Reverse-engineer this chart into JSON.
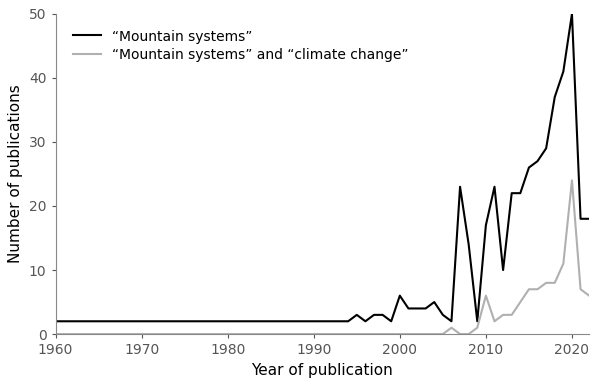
{
  "title": "",
  "xlabel": "Year of publication",
  "ylabel": "Number of publications",
  "xlim": [
    1960,
    2022
  ],
  "ylim": [
    0,
    50
  ],
  "yticks": [
    0,
    10,
    20,
    30,
    40,
    50
  ],
  "xticks": [
    1960,
    1970,
    1980,
    1990,
    2000,
    2010,
    2020
  ],
  "legend1": "“Mountain systems”",
  "legend2": "“Mountain systems” and “climate change”",
  "color1": "#000000",
  "color2": "#b0b0b0",
  "mountain_systems": {
    "years": [
      1960,
      1961,
      1962,
      1963,
      1964,
      1965,
      1966,
      1967,
      1968,
      1969,
      1970,
      1971,
      1972,
      1973,
      1974,
      1975,
      1976,
      1977,
      1978,
      1979,
      1980,
      1981,
      1982,
      1983,
      1984,
      1985,
      1986,
      1987,
      1988,
      1989,
      1990,
      1991,
      1992,
      1993,
      1994,
      1995,
      1996,
      1997,
      1998,
      1999,
      2000,
      2001,
      2002,
      2003,
      2004,
      2005,
      2006,
      2007,
      2008,
      2009,
      2010,
      2011,
      2012,
      2013,
      2014,
      2015,
      2016,
      2017,
      2018,
      2019,
      2020,
      2021,
      2022
    ],
    "values": [
      2,
      2,
      2,
      2,
      2,
      2,
      2,
      2,
      2,
      2,
      2,
      2,
      2,
      2,
      2,
      2,
      2,
      2,
      2,
      2,
      2,
      2,
      2,
      2,
      2,
      2,
      2,
      2,
      2,
      2,
      2,
      2,
      2,
      2,
      2,
      3,
      2,
      3,
      3,
      2,
      6,
      4,
      4,
      4,
      5,
      3,
      2,
      23,
      14,
      2,
      17,
      23,
      10,
      22,
      22,
      26,
      27,
      29,
      37,
      41,
      50,
      18,
      18
    ]
  },
  "mountain_climate": {
    "years": [
      1960,
      1961,
      1962,
      1963,
      1964,
      1965,
      1966,
      1967,
      1968,
      1969,
      1970,
      1971,
      1972,
      1973,
      1974,
      1975,
      1976,
      1977,
      1978,
      1979,
      1980,
      1981,
      1982,
      1983,
      1984,
      1985,
      1986,
      1987,
      1988,
      1989,
      1990,
      1991,
      1992,
      1993,
      1994,
      1995,
      1996,
      1997,
      1998,
      1999,
      2000,
      2001,
      2002,
      2003,
      2004,
      2005,
      2006,
      2007,
      2008,
      2009,
      2010,
      2011,
      2012,
      2013,
      2014,
      2015,
      2016,
      2017,
      2018,
      2019,
      2020,
      2021,
      2022
    ],
    "values": [
      0,
      0,
      0,
      0,
      0,
      0,
      0,
      0,
      0,
      0,
      0,
      0,
      0,
      0,
      0,
      0,
      0,
      0,
      0,
      0,
      0,
      0,
      0,
      0,
      0,
      0,
      0,
      0,
      0,
      0,
      0,
      0,
      0,
      0,
      0,
      0,
      0,
      0,
      0,
      0,
      0,
      0,
      0,
      0,
      0,
      0,
      1,
      0,
      0,
      1,
      6,
      2,
      3,
      3,
      5,
      7,
      7,
      8,
      8,
      11,
      24,
      7,
      6
    ]
  },
  "linewidth": 1.5,
  "tick_fontsize": 10,
  "label_fontsize": 11,
  "legend_fontsize": 10
}
